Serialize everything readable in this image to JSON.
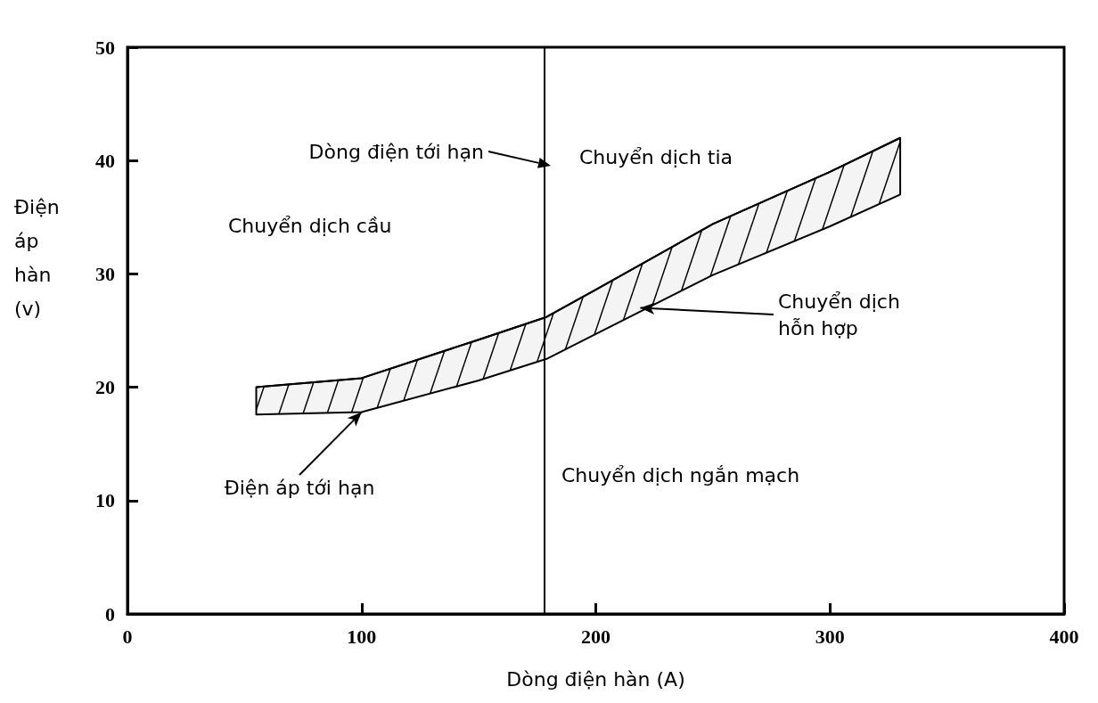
{
  "chart_data": {
    "type": "area",
    "xlabel": "Dòng điện hàn (A)",
    "ylabel": "Điện áp hàn (v)",
    "xlim": [
      0,
      400
    ],
    "xticks": [
      0,
      100,
      200,
      300,
      400
    ],
    "ylim": [
      0,
      50
    ],
    "yticks": [
      0,
      10,
      20,
      30,
      40,
      50
    ],
    "grid": false,
    "series": [
      {
        "type": "line",
        "color": "#000000",
        "x": [
          55,
          100,
          150,
          179,
          200,
          250,
          300,
          330
        ],
        "values": [
          20,
          20.8,
          24.2,
          26.2,
          28.6,
          34.4,
          39,
          42
        ],
        "upper": [
          20,
          20.8,
          24.2,
          26.2,
          28.6,
          34.4,
          39,
          42
        ],
        "lower": [
          17.6,
          17.8,
          20.6,
          22.5,
          24.7,
          29.9,
          34.2,
          37
        ]
      }
    ],
    "ref_lines": [
      {
        "axis": "x",
        "value": 178,
        "color": "#000000"
      }
    ],
    "annotations": [
      "Dòng điện tới hạn",
      "Chuyển dịch tia",
      "Chuyển dịch cầu",
      {
        "text": "Chuyển dịch\nhỗn hợp",
        "x": 219,
        "y": 27
      },
      {
        "text": "Điện áp tới hạn",
        "x": 100,
        "y": 17.8
      },
      "Chuyển dịch ngắn mạch"
    ]
  }
}
